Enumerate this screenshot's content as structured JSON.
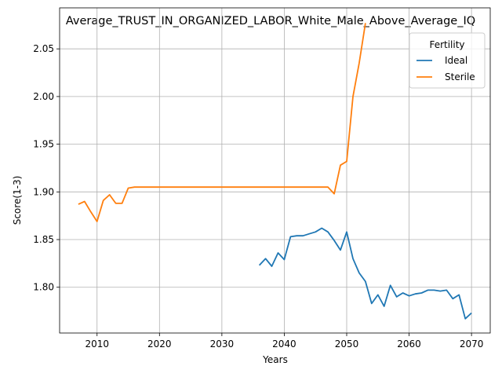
{
  "chart_data": {
    "type": "line",
    "title": "Average_TRUST_IN_ORGANIZED_LABOR_White_Male_Above_Average_IQ",
    "xlabel": "Years",
    "ylabel": "Score(1-3)",
    "xlim": [
      2004,
      2073
    ],
    "ylim": [
      1.752,
      2.093
    ],
    "xticks": [
      2010,
      2020,
      2030,
      2040,
      2050,
      2060,
      2070
    ],
    "yticks": [
      1.8,
      1.85,
      1.9,
      1.95,
      2.0,
      2.05
    ],
    "grid": true,
    "legend": {
      "title": "Fertility",
      "placement": "top-right"
    },
    "series": [
      {
        "name": "Ideal",
        "color": "#1f77b4",
        "points": [
          [
            2036,
            1.823
          ],
          [
            2037,
            1.83
          ],
          [
            2038,
            1.822
          ],
          [
            2039,
            1.836
          ],
          [
            2040,
            1.829
          ],
          [
            2041,
            1.853
          ],
          [
            2042,
            1.854
          ],
          [
            2043,
            1.854
          ],
          [
            2044,
            1.856
          ],
          [
            2045,
            1.858
          ],
          [
            2046,
            1.862
          ],
          [
            2047,
            1.858
          ],
          [
            2048,
            1.849
          ],
          [
            2049,
            1.839
          ],
          [
            2050,
            1.858
          ],
          [
            2051,
            1.83
          ],
          [
            2052,
            1.815
          ],
          [
            2053,
            1.806
          ],
          [
            2054,
            1.783
          ],
          [
            2055,
            1.792
          ],
          [
            2056,
            1.78
          ],
          [
            2057,
            1.802
          ],
          [
            2058,
            1.79
          ],
          [
            2059,
            1.794
          ],
          [
            2060,
            1.791
          ],
          [
            2061,
            1.793
          ],
          [
            2062,
            1.794
          ],
          [
            2063,
            1.797
          ],
          [
            2064,
            1.797
          ],
          [
            2065,
            1.796
          ],
          [
            2066,
            1.797
          ],
          [
            2067,
            1.788
          ],
          [
            2068,
            1.792
          ],
          [
            2069,
            1.767
          ],
          [
            2070,
            1.773
          ]
        ]
      },
      {
        "name": "Sterile",
        "color": "#ff7f0e",
        "points": [
          [
            2007,
            1.887
          ],
          [
            2008,
            1.89
          ],
          [
            2009,
            1.879
          ],
          [
            2010,
            1.869
          ],
          [
            2011,
            1.891
          ],
          [
            2012,
            1.897
          ],
          [
            2013,
            1.888
          ],
          [
            2014,
            1.888
          ],
          [
            2015,
            1.904
          ],
          [
            2016,
            1.905
          ],
          [
            2020,
            1.905
          ],
          [
            2030,
            1.905
          ],
          [
            2040,
            1.905
          ],
          [
            2045,
            1.905
          ],
          [
            2047,
            1.905
          ],
          [
            2048,
            1.898
          ],
          [
            2049,
            1.928
          ],
          [
            2050,
            1.932
          ],
          [
            2051,
            2.0
          ],
          [
            2052,
            2.035
          ],
          [
            2053,
            2.077
          ]
        ]
      }
    ]
  }
}
